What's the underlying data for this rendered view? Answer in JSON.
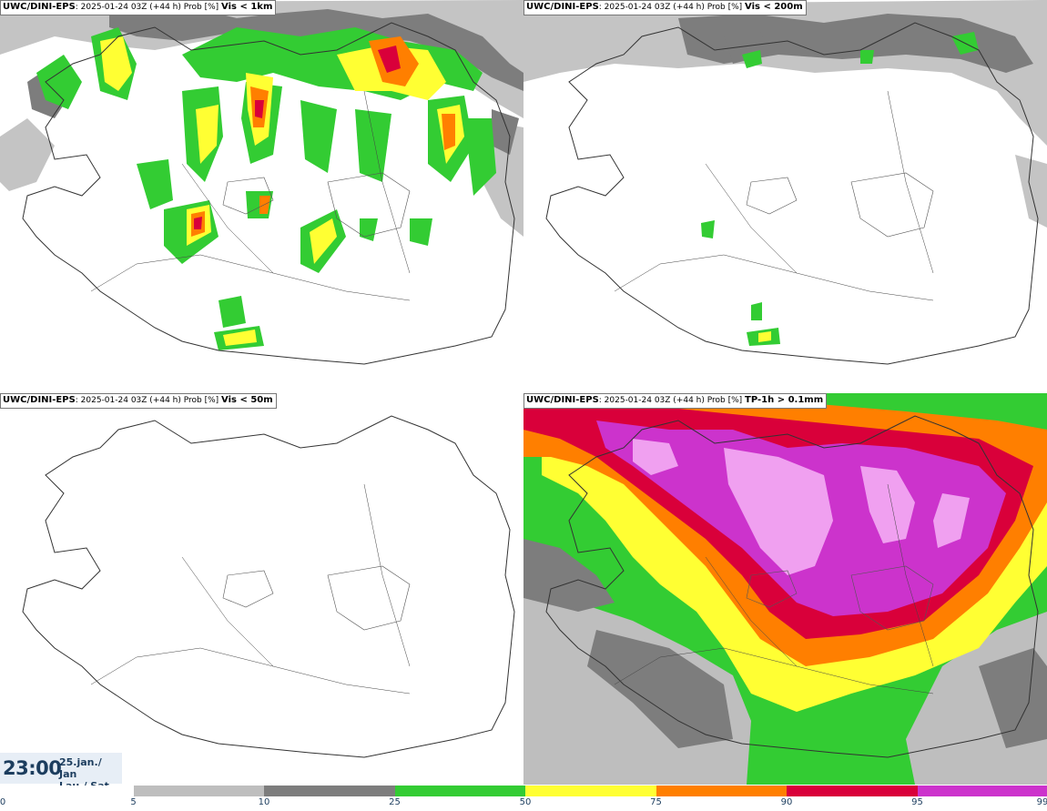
{
  "panels": [
    {
      "model": "UWC/DINI-EPS",
      "info": ": 2025-01-24 03Z (+44 h) Prob [%]",
      "variable": "Vis < 1km"
    },
    {
      "model": "UWC/DINI-EPS",
      "info": ": 2025-01-24 03Z (+44 h) Prob [%]",
      "variable": "Vis < 200m"
    },
    {
      "model": "UWC/DINI-EPS",
      "info": ": 2025-01-24 03Z (+44 h) Prob [%]",
      "variable": "Vis < 50m"
    },
    {
      "model": "UWC/DINI-EPS",
      "info": ": 2025-01-24 03Z (+44 h) Prob [%]",
      "variable": "TP-1h > 0.1mm"
    }
  ],
  "valid_time": {
    "time": "23:00",
    "date_line1": "25.jan./ Jan",
    "date_line2": "Lau./ Sat"
  },
  "legend": {
    "labels": [
      "0",
      "5",
      "10",
      "25",
      "50",
      "75",
      "90",
      "95",
      "99"
    ],
    "colors": [
      "#ffffff",
      "#bebebe",
      "#7d7d7d",
      "#33cc33",
      "#ffff33",
      "#ff7f00",
      "#d9003a",
      "#cc33cc",
      "#f0a0f0"
    ]
  }
}
